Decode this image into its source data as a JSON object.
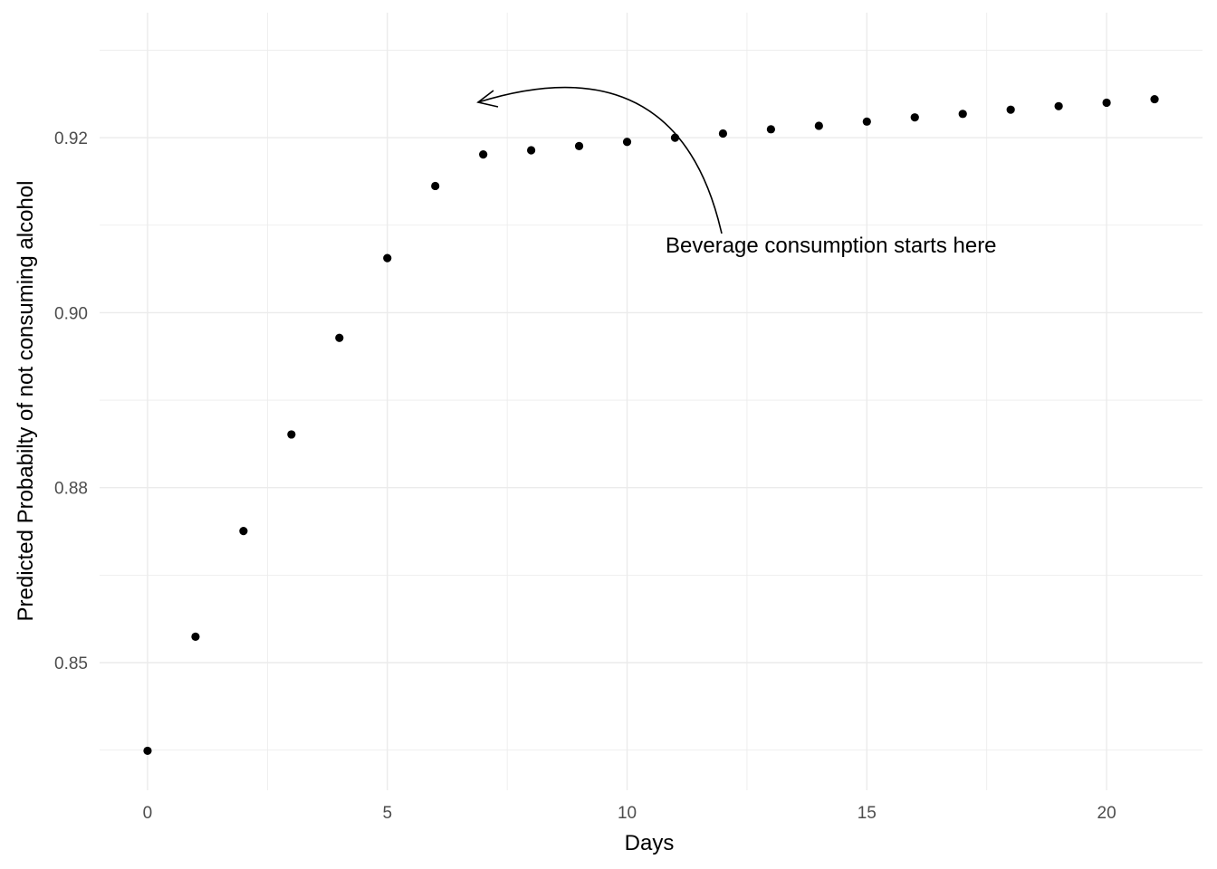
{
  "chart_data": {
    "type": "scatter",
    "title": "",
    "xlabel": "Days",
    "ylabel": "Predicted Probabilty of not consuming alcohol",
    "xlim": [
      -1,
      22
    ],
    "ylim": [
      0.84,
      0.9305
    ],
    "x_ticks": [
      "0",
      "5",
      "10",
      "15",
      "20"
    ],
    "x_tick_values": [
      0,
      5,
      10,
      15,
      20
    ],
    "y_ticks": [
      "0.85",
      "0.88",
      "0.90",
      "0.92"
    ],
    "y_tick_values": [
      0.85,
      0.875,
      0.9,
      0.925
    ],
    "grid": true,
    "legend": "none",
    "point_color": "#000000",
    "grid_color": "#ebebeb",
    "points": [
      {
        "x": 0,
        "y": 0.8374
      },
      {
        "x": 1,
        "y": 0.8537
      },
      {
        "x": 2,
        "y": 0.8688
      },
      {
        "x": 3,
        "y": 0.8826
      },
      {
        "x": 4,
        "y": 0.8964
      },
      {
        "x": 5,
        "y": 0.9078
      },
      {
        "x": 6,
        "y": 0.9181
      },
      {
        "x": 7,
        "y": 0.9226
      },
      {
        "x": 8,
        "y": 0.9232
      },
      {
        "x": 9,
        "y": 0.9238
      },
      {
        "x": 10,
        "y": 0.9244
      },
      {
        "x": 11,
        "y": 0.925
      },
      {
        "x": 12,
        "y": 0.9256
      },
      {
        "x": 13,
        "y": 0.9262
      },
      {
        "x": 14,
        "y": 0.9267
      },
      {
        "x": 15,
        "y": 0.9273
      },
      {
        "x": 16,
        "y": 0.9279
      },
      {
        "x": 17,
        "y": 0.9284
      },
      {
        "x": 18,
        "y": 0.929
      },
      {
        "x": 19,
        "y": 0.9295
      },
      {
        "x": 20,
        "y": 0.93
      },
      {
        "x": 21,
        "y": 0.9305
      }
    ],
    "annotations": [
      {
        "text": "Beverage consumption starts here",
        "target_x": 7,
        "target_y": 0.9226
      }
    ]
  }
}
